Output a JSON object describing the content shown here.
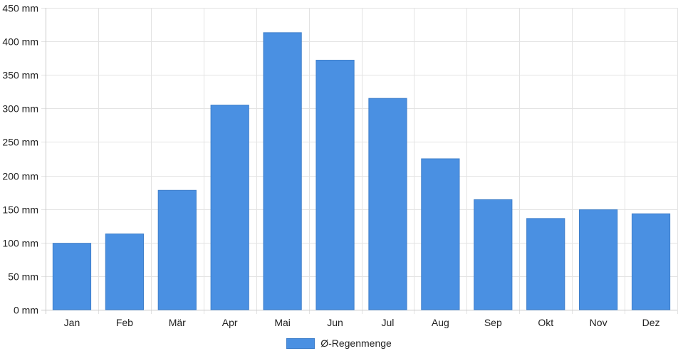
{
  "chart_data": {
    "type": "bar",
    "categories": [
      "Jan",
      "Feb",
      "Mär",
      "Apr",
      "Mai",
      "Jun",
      "Jul",
      "Aug",
      "Sep",
      "Okt",
      "Nov",
      "Dez"
    ],
    "series": [
      {
        "name": "Ø-Regenmenge",
        "values": [
          99,
          113,
          178,
          305,
          413,
          372,
          315,
          225,
          164,
          136,
          149,
          143
        ]
      }
    ],
    "y_unit_suffix": " mm",
    "ylim": [
      0,
      450
    ],
    "y_ticks": [
      0,
      50,
      100,
      150,
      200,
      250,
      300,
      350,
      400,
      450
    ],
    "grid": true,
    "legend_position": "bottom"
  },
  "colors": {
    "bar_fill": "#4a90e2",
    "bar_stroke": "#3f7fca",
    "grid": "#e3e3e3",
    "axis": "#c8c8c8"
  }
}
